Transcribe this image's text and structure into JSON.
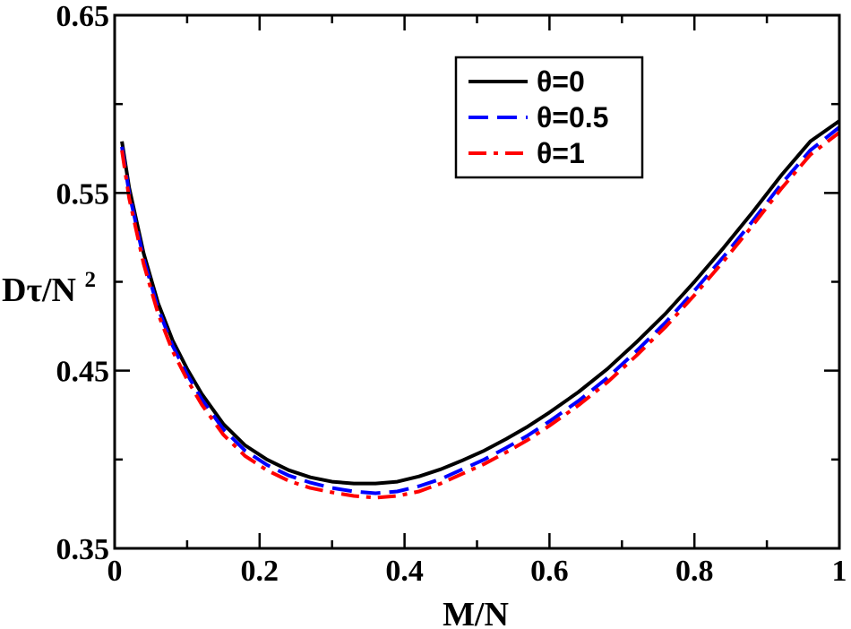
{
  "chart_data": {
    "type": "line",
    "title": "",
    "xlabel": "M/N",
    "ylabel": {
      "main": "Dτ/N",
      "superscript": "2"
    },
    "xlim": [
      0,
      1
    ],
    "ylim": [
      0.35,
      0.65
    ],
    "x_major_ticks": [
      0,
      0.2,
      0.4,
      0.6,
      0.8,
      1
    ],
    "x_tick_labels": [
      "0",
      "0.2",
      "0.4",
      "0.6",
      "0.8",
      "1"
    ],
    "y_major_ticks": [
      0.35,
      0.45,
      0.55,
      0.65
    ],
    "y_tick_labels": [
      "0.35",
      "0.45",
      "0.55",
      "0.65"
    ],
    "y_minor_ticks": [
      0.4,
      0.5,
      0.6
    ],
    "x_minor_ticks": [
      0.1,
      0.3,
      0.5,
      0.7,
      0.9
    ],
    "grid": false,
    "legend_position": "top-right",
    "series": [
      {
        "name": "θ=0",
        "color": "#000000",
        "dash": "solid",
        "x": [
          0.01,
          0.02,
          0.04,
          0.06,
          0.08,
          0.1,
          0.12,
          0.15,
          0.18,
          0.21,
          0.24,
          0.27,
          0.3,
          0.33,
          0.36,
          0.39,
          0.42,
          0.45,
          0.48,
          0.51,
          0.54,
          0.57,
          0.6,
          0.64,
          0.68,
          0.72,
          0.76,
          0.8,
          0.84,
          0.88,
          0.92,
          0.96,
          1.0
        ],
        "y": [
          0.579,
          0.553,
          0.516,
          0.488,
          0.467,
          0.451,
          0.437,
          0.42,
          0.408,
          0.4,
          0.394,
          0.39,
          0.3875,
          0.3865,
          0.3865,
          0.3875,
          0.3905,
          0.3945,
          0.3995,
          0.405,
          0.4115,
          0.4185,
          0.4265,
          0.438,
          0.451,
          0.466,
          0.482,
          0.5,
          0.519,
          0.539,
          0.56,
          0.579,
          0.5905
        ]
      },
      {
        "name": "θ=0.5",
        "color": "#0000ff",
        "dash": "dashed",
        "x": [
          0.01,
          0.02,
          0.04,
          0.06,
          0.08,
          0.1,
          0.12,
          0.15,
          0.18,
          0.21,
          0.24,
          0.27,
          0.3,
          0.33,
          0.36,
          0.39,
          0.42,
          0.45,
          0.48,
          0.51,
          0.54,
          0.57,
          0.6,
          0.64,
          0.68,
          0.72,
          0.76,
          0.8,
          0.84,
          0.88,
          0.92,
          0.96,
          1.0
        ],
        "y": [
          0.576,
          0.55,
          0.513,
          0.485,
          0.464,
          0.448,
          0.434,
          0.417,
          0.405,
          0.397,
          0.391,
          0.387,
          0.384,
          0.382,
          0.381,
          0.382,
          0.385,
          0.389,
          0.3945,
          0.4,
          0.4065,
          0.4135,
          0.4215,
          0.433,
          0.446,
          0.461,
          0.477,
          0.495,
          0.514,
          0.534,
          0.555,
          0.574,
          0.587
        ]
      },
      {
        "name": "θ=1",
        "color": "#ff0000",
        "dash": "dash-dot",
        "x": [
          0.01,
          0.02,
          0.04,
          0.06,
          0.08,
          0.1,
          0.12,
          0.15,
          0.18,
          0.21,
          0.24,
          0.27,
          0.3,
          0.33,
          0.36,
          0.39,
          0.42,
          0.45,
          0.48,
          0.51,
          0.54,
          0.57,
          0.6,
          0.64,
          0.68,
          0.72,
          0.76,
          0.8,
          0.84,
          0.88,
          0.92,
          0.96,
          1.0
        ],
        "y": [
          0.574,
          0.547,
          0.51,
          0.482,
          0.461,
          0.445,
          0.431,
          0.414,
          0.402,
          0.394,
          0.388,
          0.384,
          0.3815,
          0.3795,
          0.3785,
          0.3795,
          0.382,
          0.3865,
          0.392,
          0.3975,
          0.404,
          0.411,
          0.419,
          0.4305,
          0.4435,
          0.4585,
          0.4745,
          0.4925,
          0.5115,
          0.5315,
          0.5525,
          0.5715,
          0.584
        ]
      }
    ]
  }
}
